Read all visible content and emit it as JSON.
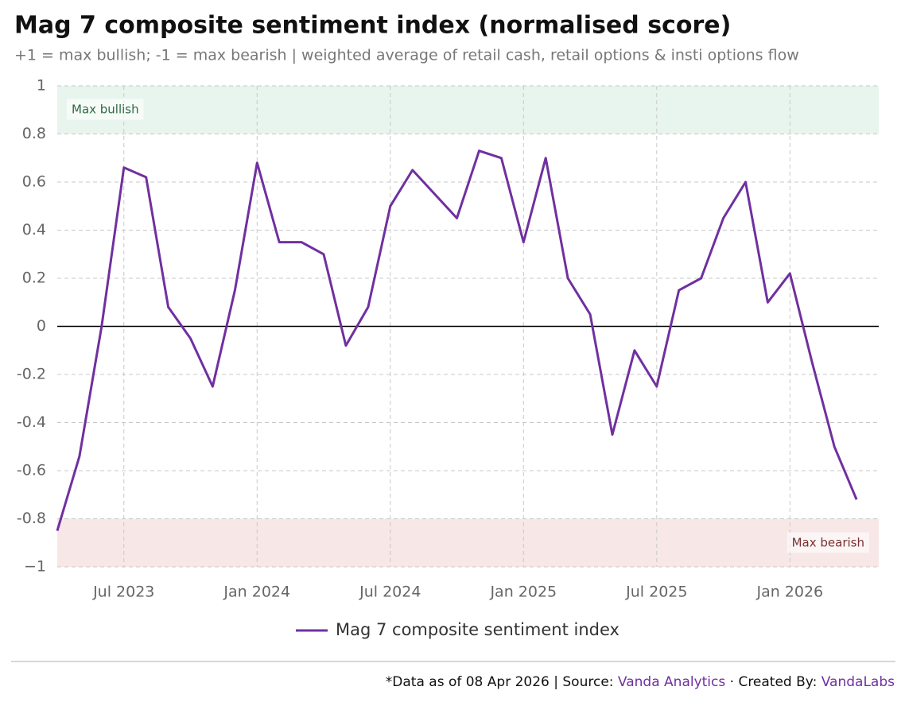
{
  "chart_data": {
    "type": "line",
    "title": "Mag 7 composite sentiment index (normalised score)",
    "subtitle": "+1 = max bullish; -1 = max bearish | weighted average of retail cash, retail options & insti options flow",
    "x": [
      "2023-04",
      "2023-05",
      "2023-06",
      "2023-07",
      "2023-08",
      "2023-09",
      "2023-10",
      "2023-11",
      "2023-12",
      "2024-01",
      "2024-02",
      "2024-03",
      "2024-04",
      "2024-05",
      "2024-06",
      "2024-07",
      "2024-08",
      "2024-09",
      "2024-10",
      "2024-11",
      "2024-12",
      "2025-01",
      "2025-02",
      "2025-03",
      "2025-04",
      "2025-05",
      "2025-06",
      "2025-07",
      "2025-08",
      "2025-09",
      "2025-10",
      "2025-11",
      "2025-12",
      "2026-01",
      "2026-02",
      "2026-03",
      "2026-04"
    ],
    "series": [
      {
        "name": "Mag 7 composite sentiment index",
        "color": "#7030a0",
        "values": [
          -0.85,
          -0.54,
          0.0,
          0.66,
          0.62,
          0.08,
          -0.05,
          -0.25,
          0.15,
          0.68,
          0.35,
          0.35,
          0.3,
          -0.08,
          0.08,
          0.5,
          0.65,
          0.55,
          0.45,
          0.73,
          0.7,
          0.35,
          0.7,
          0.2,
          0.05,
          -0.45,
          -0.1,
          -0.25,
          0.15,
          0.2,
          0.45,
          0.6,
          0.1,
          0.22,
          -0.15,
          -0.5,
          -0.72
        ]
      }
    ],
    "xlim": [
      "2023-04",
      "2026-05"
    ],
    "xticks": [
      {
        "value": "2023-07",
        "label": "Jul 2023"
      },
      {
        "value": "2024-01",
        "label": "Jan 2024"
      },
      {
        "value": "2024-07",
        "label": "Jul 2024"
      },
      {
        "value": "2025-01",
        "label": "Jan 2025"
      },
      {
        "value": "2025-07",
        "label": "Jul 2025"
      },
      {
        "value": "2026-01",
        "label": "Jan 2026"
      }
    ],
    "ylim": [
      -1,
      1
    ],
    "yticks": [
      {
        "value": -1,
        "label": "−1"
      },
      -0.8,
      -0.6,
      -0.4,
      -0.2,
      0,
      0.2,
      0.4,
      0.6,
      0.8,
      1
    ],
    "grid": true,
    "reference_line": 0,
    "bands": [
      {
        "label": "Max bullish",
        "range": [
          0.8,
          1
        ],
        "color": "#e8f5ee",
        "text_color": "#2e6b45"
      },
      {
        "label": "Max bearish",
        "range": [
          -1,
          -0.8
        ],
        "color": "#f7e7e7",
        "text_color": "#7a3030"
      }
    ],
    "footer": {
      "prefix": "*Data as of 08 Apr 2026 | Source:",
      "source": "Vanda Analytics",
      "middle": "· Created By:",
      "creator": "VandaLabs"
    }
  }
}
